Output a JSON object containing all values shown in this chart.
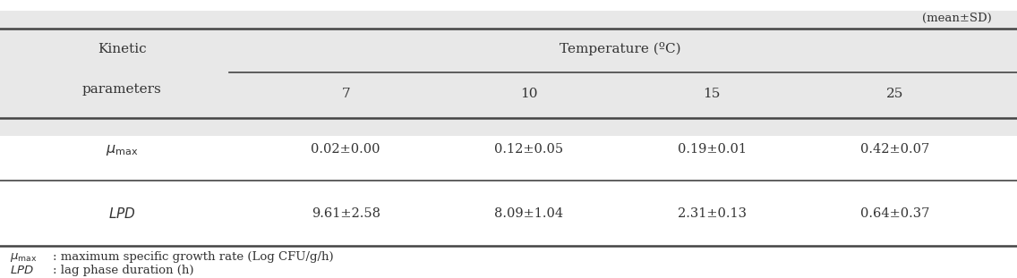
{
  "mean_sd_label": "(mean±SD)",
  "header_temp": "Temperature (ºC)",
  "temp_values": [
    "7",
    "10",
    "15",
    "25"
  ],
  "row1_values": [
    "0.02±0.00",
    "0.12±0.05",
    "0.19±0.01",
    "0.42±0.07"
  ],
  "row2_values": [
    "9.61±2.58",
    "8.09±1.04",
    "2.31±0.13",
    "0.64±0.37"
  ],
  "bg_header": "#e8e8e8",
  "bg_white": "#ffffff",
  "line_color": "#444444",
  "text_color": "#333333",
  "font_size_header": 11,
  "font_size_data": 10.5,
  "font_size_footnote": 9.5
}
